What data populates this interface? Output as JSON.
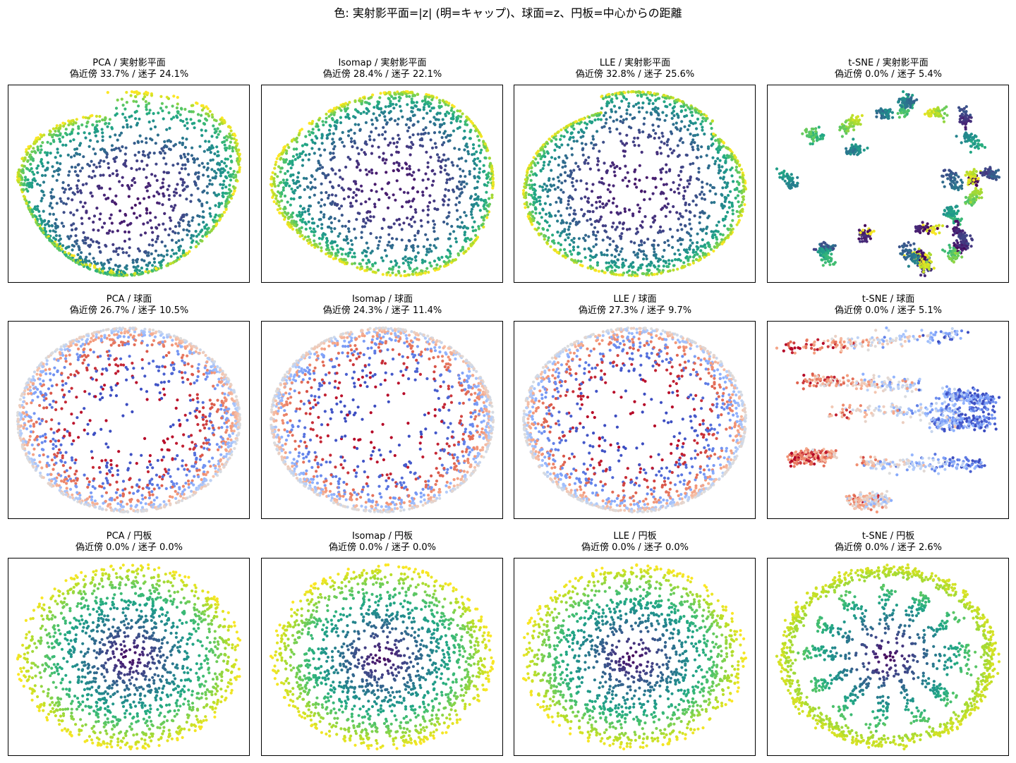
{
  "suptitle": "色: 実射影平面=|z| (明=キャップ)、球面=z、円板=中心からの距離",
  "chart_data": [
    {
      "type": "scatter",
      "title": "PCA / 実射影平面",
      "subtitle": "偽近傍 33.7% / 迷子 24.1%",
      "method": "PCA",
      "dataset": "実射影平面",
      "colormap": "viridis",
      "false_neighbors_pct": 33.7,
      "lost_pct": 24.1,
      "axes": "off",
      "n_points": 1500
    },
    {
      "type": "scatter",
      "title": "Isomap / 実射影平面",
      "subtitle": "偽近傍 28.4% / 迷子 22.1%",
      "method": "Isomap",
      "dataset": "実射影平面",
      "colormap": "viridis",
      "false_neighbors_pct": 28.4,
      "lost_pct": 22.1,
      "axes": "off",
      "n_points": 1500
    },
    {
      "type": "scatter",
      "title": "LLE / 実射影平面",
      "subtitle": "偽近傍 32.8% / 迷子 25.6%",
      "method": "LLE",
      "dataset": "実射影平面",
      "colormap": "viridis",
      "false_neighbors_pct": 32.8,
      "lost_pct": 25.6,
      "axes": "off",
      "n_points": 1500
    },
    {
      "type": "scatter",
      "title": "t-SNE / 実射影平面",
      "subtitle": "偽近傍 0.0% / 迷子 5.4%",
      "method": "t-SNE",
      "dataset": "実射影平面",
      "colormap": "viridis",
      "false_neighbors_pct": 0.0,
      "lost_pct": 5.4,
      "axes": "off",
      "n_points": 1500
    },
    {
      "type": "scatter",
      "title": "PCA / 球面",
      "subtitle": "偽近傍 26.7% / 迷子 10.5%",
      "method": "PCA",
      "dataset": "球面",
      "colormap": "coolwarm",
      "false_neighbors_pct": 26.7,
      "lost_pct": 10.5,
      "axes": "off",
      "n_points": 1500
    },
    {
      "type": "scatter",
      "title": "Isomap / 球面",
      "subtitle": "偽近傍 24.3% / 迷子 11.4%",
      "method": "Isomap",
      "dataset": "球面",
      "colormap": "coolwarm",
      "false_neighbors_pct": 24.3,
      "lost_pct": 11.4,
      "axes": "off",
      "n_points": 1500
    },
    {
      "type": "scatter",
      "title": "LLE / 球面",
      "subtitle": "偽近傍 27.3% / 迷子 9.7%",
      "method": "LLE",
      "dataset": "球面",
      "colormap": "coolwarm",
      "false_neighbors_pct": 27.3,
      "lost_pct": 9.7,
      "axes": "off",
      "n_points": 1500
    },
    {
      "type": "scatter",
      "title": "t-SNE / 球面",
      "subtitle": "偽近傍 0.0% / 迷子 5.1%",
      "method": "t-SNE",
      "dataset": "球面",
      "colormap": "coolwarm",
      "false_neighbors_pct": 0.0,
      "lost_pct": 5.1,
      "axes": "off",
      "n_points": 1500
    },
    {
      "type": "scatter",
      "title": "PCA / 円板",
      "subtitle": "偽近傍 0.0% / 迷子 0.0%",
      "method": "PCA",
      "dataset": "円板",
      "colormap": "viridis",
      "false_neighbors_pct": 0.0,
      "lost_pct": 0.0,
      "axes": "off",
      "n_points": 1500
    },
    {
      "type": "scatter",
      "title": "Isomap / 円板",
      "subtitle": "偽近傍 0.0% / 迷子 0.0%",
      "method": "Isomap",
      "dataset": "円板",
      "colormap": "viridis",
      "false_neighbors_pct": 0.0,
      "lost_pct": 0.0,
      "axes": "off",
      "n_points": 1500
    },
    {
      "type": "scatter",
      "title": "LLE / 円板",
      "subtitle": "偽近傍 0.0% / 迷子 0.0%",
      "method": "LLE",
      "dataset": "円板",
      "colormap": "viridis",
      "false_neighbors_pct": 0.0,
      "lost_pct": 0.0,
      "axes": "off",
      "n_points": 1500
    },
    {
      "type": "scatter",
      "title": "t-SNE / 円板",
      "subtitle": "偽近傍 0.0% / 迷子 2.6%",
      "method": "t-SNE",
      "dataset": "円板",
      "colormap": "viridis",
      "false_neighbors_pct": 0.0,
      "lost_pct": 2.6,
      "axes": "off",
      "n_points": 1500
    }
  ]
}
